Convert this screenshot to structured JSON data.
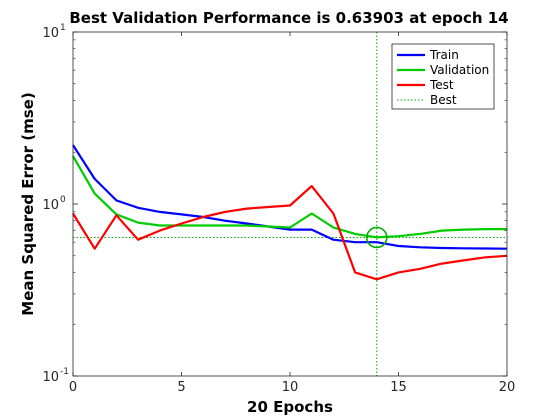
{
  "chart_data": {
    "type": "line",
    "title": "Best Validation Performance is 0.63903 at epoch 14",
    "xlabel": "20 Epochs",
    "ylabel": "Mean Squared Error  (mse)",
    "xlim": [
      0,
      20
    ],
    "ylim": [
      0.1,
      10
    ],
    "yscale": "log",
    "xticks": [
      "0",
      "5",
      "10",
      "15",
      "20"
    ],
    "yticks": [
      {
        "base": "10",
        "exp": "1"
      },
      {
        "base": "10",
        "exp": "0"
      },
      {
        "base": "10",
        "exp": "-1"
      }
    ],
    "x": [
      0,
      1,
      2,
      3,
      4,
      5,
      6,
      7,
      8,
      9,
      10,
      11,
      12,
      13,
      14,
      15,
      16,
      17,
      18,
      19,
      20
    ],
    "series": [
      {
        "name": "Train",
        "color": "#0000ff",
        "values": [
          2.2,
          1.4,
          1.05,
          0.95,
          0.9,
          0.87,
          0.84,
          0.8,
          0.77,
          0.74,
          0.71,
          0.71,
          0.62,
          0.6,
          0.6,
          0.57,
          0.56,
          0.555,
          0.553,
          0.551,
          0.55
        ]
      },
      {
        "name": "Validation",
        "color": "#00cc00",
        "values": [
          1.9,
          1.15,
          0.87,
          0.78,
          0.75,
          0.75,
          0.75,
          0.75,
          0.75,
          0.74,
          0.73,
          0.88,
          0.73,
          0.67,
          0.64,
          0.65,
          0.67,
          0.7,
          0.71,
          0.715,
          0.715
        ]
      },
      {
        "name": "Test",
        "color": "#ff0000",
        "values": [
          0.88,
          0.55,
          0.86,
          0.62,
          0.7,
          0.77,
          0.84,
          0.9,
          0.94,
          0.96,
          0.98,
          1.27,
          0.88,
          0.4,
          0.365,
          0.4,
          0.42,
          0.45,
          0.47,
          0.49,
          0.5
        ]
      }
    ],
    "best": {
      "name": "Best",
      "epoch": 14,
      "value": 0.63903,
      "color": "#00aa00"
    },
    "legend": "top-right",
    "grid": false
  }
}
